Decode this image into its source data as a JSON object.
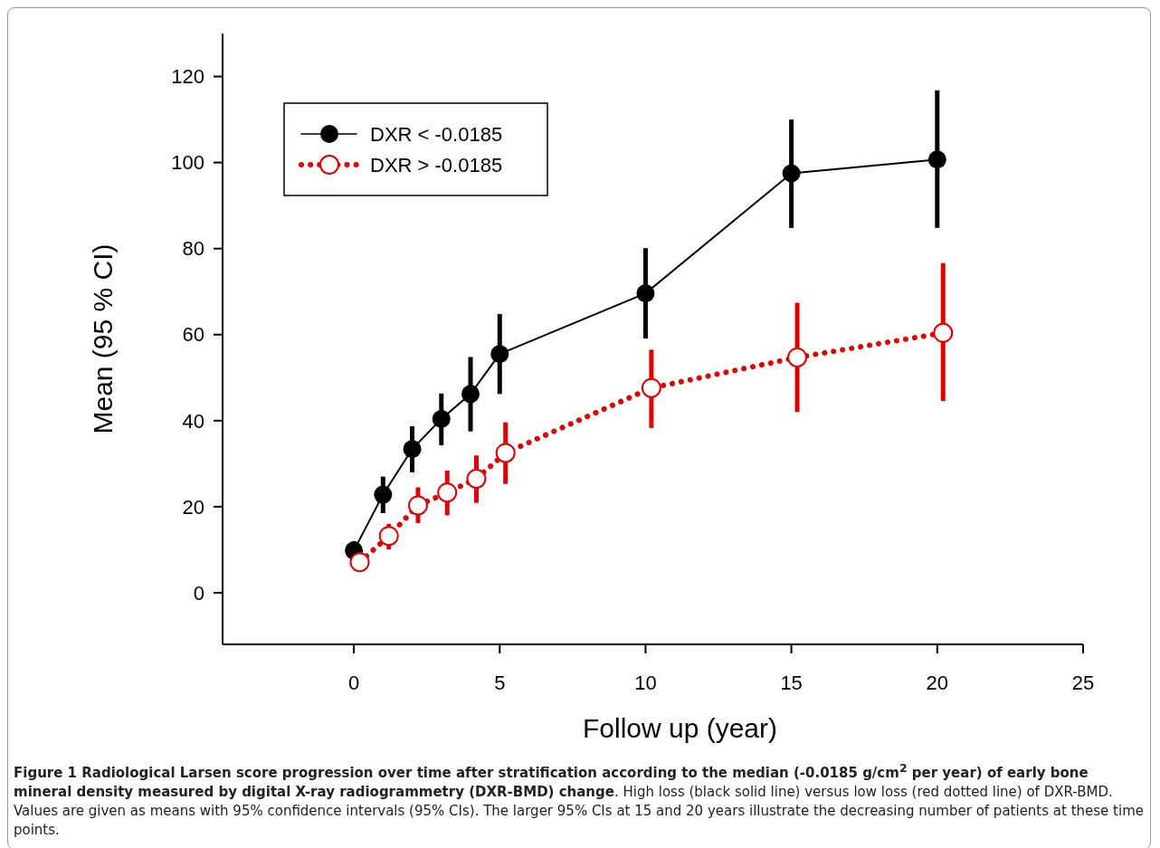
{
  "chart_data": {
    "type": "line",
    "xlabel": "Follow up (year)",
    "ylabel": "Mean (95 % CI)",
    "xlim": [
      -4.5,
      25
    ],
    "xticks": [
      0,
      5,
      10,
      15,
      20,
      25
    ],
    "ylim": [
      -12,
      130
    ],
    "yticks": [
      0,
      20,
      40,
      60,
      80,
      100,
      120
    ],
    "grid": false,
    "legend": "top left",
    "series": [
      {
        "name": "DXR < -0.0185",
        "color": "#000000",
        "marker": "circle",
        "line_style": "solid",
        "x": [
          0,
          1,
          2,
          3,
          4,
          5,
          10,
          15,
          20
        ],
        "values": [
          9.8,
          22.8,
          33.4,
          40.4,
          46.2,
          55.5,
          69.6,
          97.5,
          100.7
        ],
        "errors": [
          [
            7.5,
            12
          ],
          [
            18.5,
            27
          ],
          [
            28,
            38.7
          ],
          [
            34.3,
            46.3
          ],
          [
            37.5,
            54.8
          ],
          [
            46.2,
            64.8
          ],
          [
            59.1,
            80.1
          ],
          [
            84.8,
            110
          ],
          [
            84.8,
            116.8
          ]
        ]
      },
      {
        "name": "DXR > -0.0185",
        "color": "#e00000",
        "marker": "circle",
        "line_style": "dotted",
        "x": [
          0.2,
          1.2,
          2.2,
          3.2,
          4.2,
          5.2,
          10.2,
          15.2,
          20.2
        ],
        "values": [
          7.1,
          13.2,
          20.3,
          23.3,
          26.5,
          32.5,
          47.6,
          54.7,
          60.4
        ],
        "errors": [
          [
            5.2,
            9.4
          ],
          [
            10.1,
            16
          ],
          [
            16.2,
            24.5
          ],
          [
            18,
            28.4
          ],
          [
            20.9,
            31.9
          ],
          [
            25.3,
            39.6
          ],
          [
            38.3,
            56.5
          ],
          [
            42,
            67.4
          ],
          [
            44.6,
            76.6
          ]
        ]
      }
    ],
    "annotations": [
      "Figure 1 Radiological Larsen score progression over time after stratification according to the median (-0.0185 g/cm$^{2}$ per year) of early bone mineral density measured by digital X-ray radiogrammetry (DXR-BMD) change",
      ". High loss (black solid line) versus low loss (red dotted line) of DXR-BMD. Values are given as means with 95% confidence intervals (95% CIs). The larger 95% CIs at 15 and 20 years illustrate the decreasing number of patients at these time points."
    ]
  }
}
